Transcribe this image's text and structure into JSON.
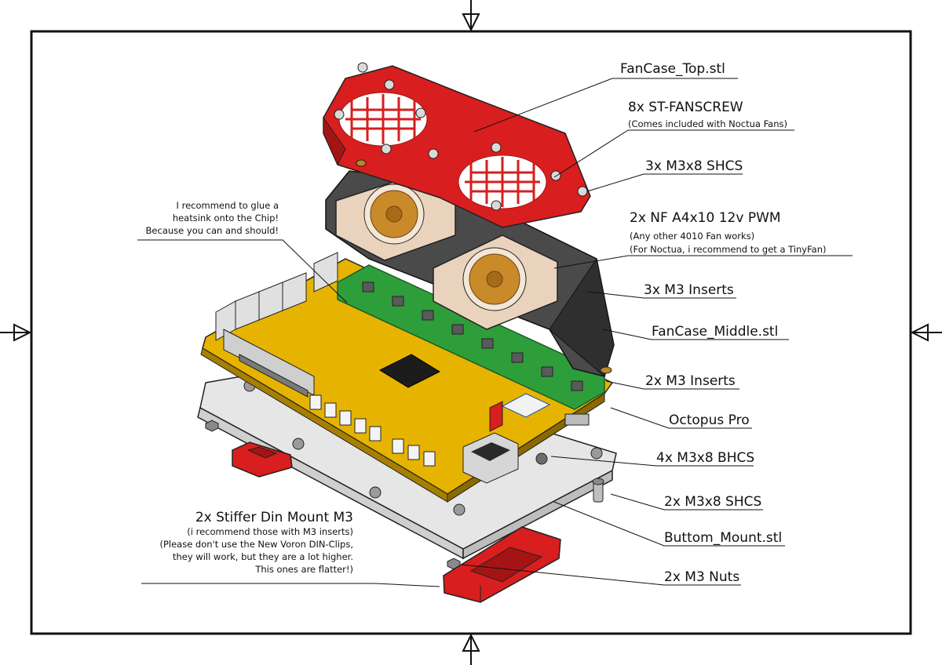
{
  "callouts": {
    "fancase_top": "FanCase_Top.stl",
    "fanscrew": "8x ST-FANSCREW",
    "fanscrew_note": "(Comes included with Noctua Fans)",
    "shcs_top": "3x M3x8 SHCS",
    "fan": "2x NF A4x10 12v PWM",
    "fan_note_1": "(Any other 4010 Fan works)",
    "fan_note_2": "(For Noctua, i recommend to get a TinyFan)",
    "inserts_3": "3x M3 Inserts",
    "fancase_middle": "FanCase_Middle.stl",
    "inserts_2": "2x M3 Inserts",
    "board": "Octopus Pro",
    "bhcs": "4x M3x8 BHCS",
    "shcs_bottom": "2x M3x8 SHCS",
    "bottom_mount": "Buttom_Mount.stl",
    "nuts": "2x M3 Nuts"
  },
  "heatsink_note": [
    "I recommend to glue a",
    "heatsink onto the Chip!",
    "Because you can and should!"
  ],
  "din_mount": {
    "title": "2x Stiffer Din Mount M3",
    "notes": [
      "(i recommend those with M3 inserts)",
      "(Please don't use the New Voron DIN-Clips,",
      "they will work, but they are a lot higher.",
      "This ones are flatter!)"
    ]
  },
  "colors": {
    "printed_accent": "#d81e1e",
    "printed_dark": "#4a4a4a",
    "pcb": "#e6b400",
    "driver_board": "#2e9e3a",
    "fan_frame": "#e9d3bd",
    "fan_blade": "#c98a2a",
    "mount_plate": "#ececec"
  }
}
